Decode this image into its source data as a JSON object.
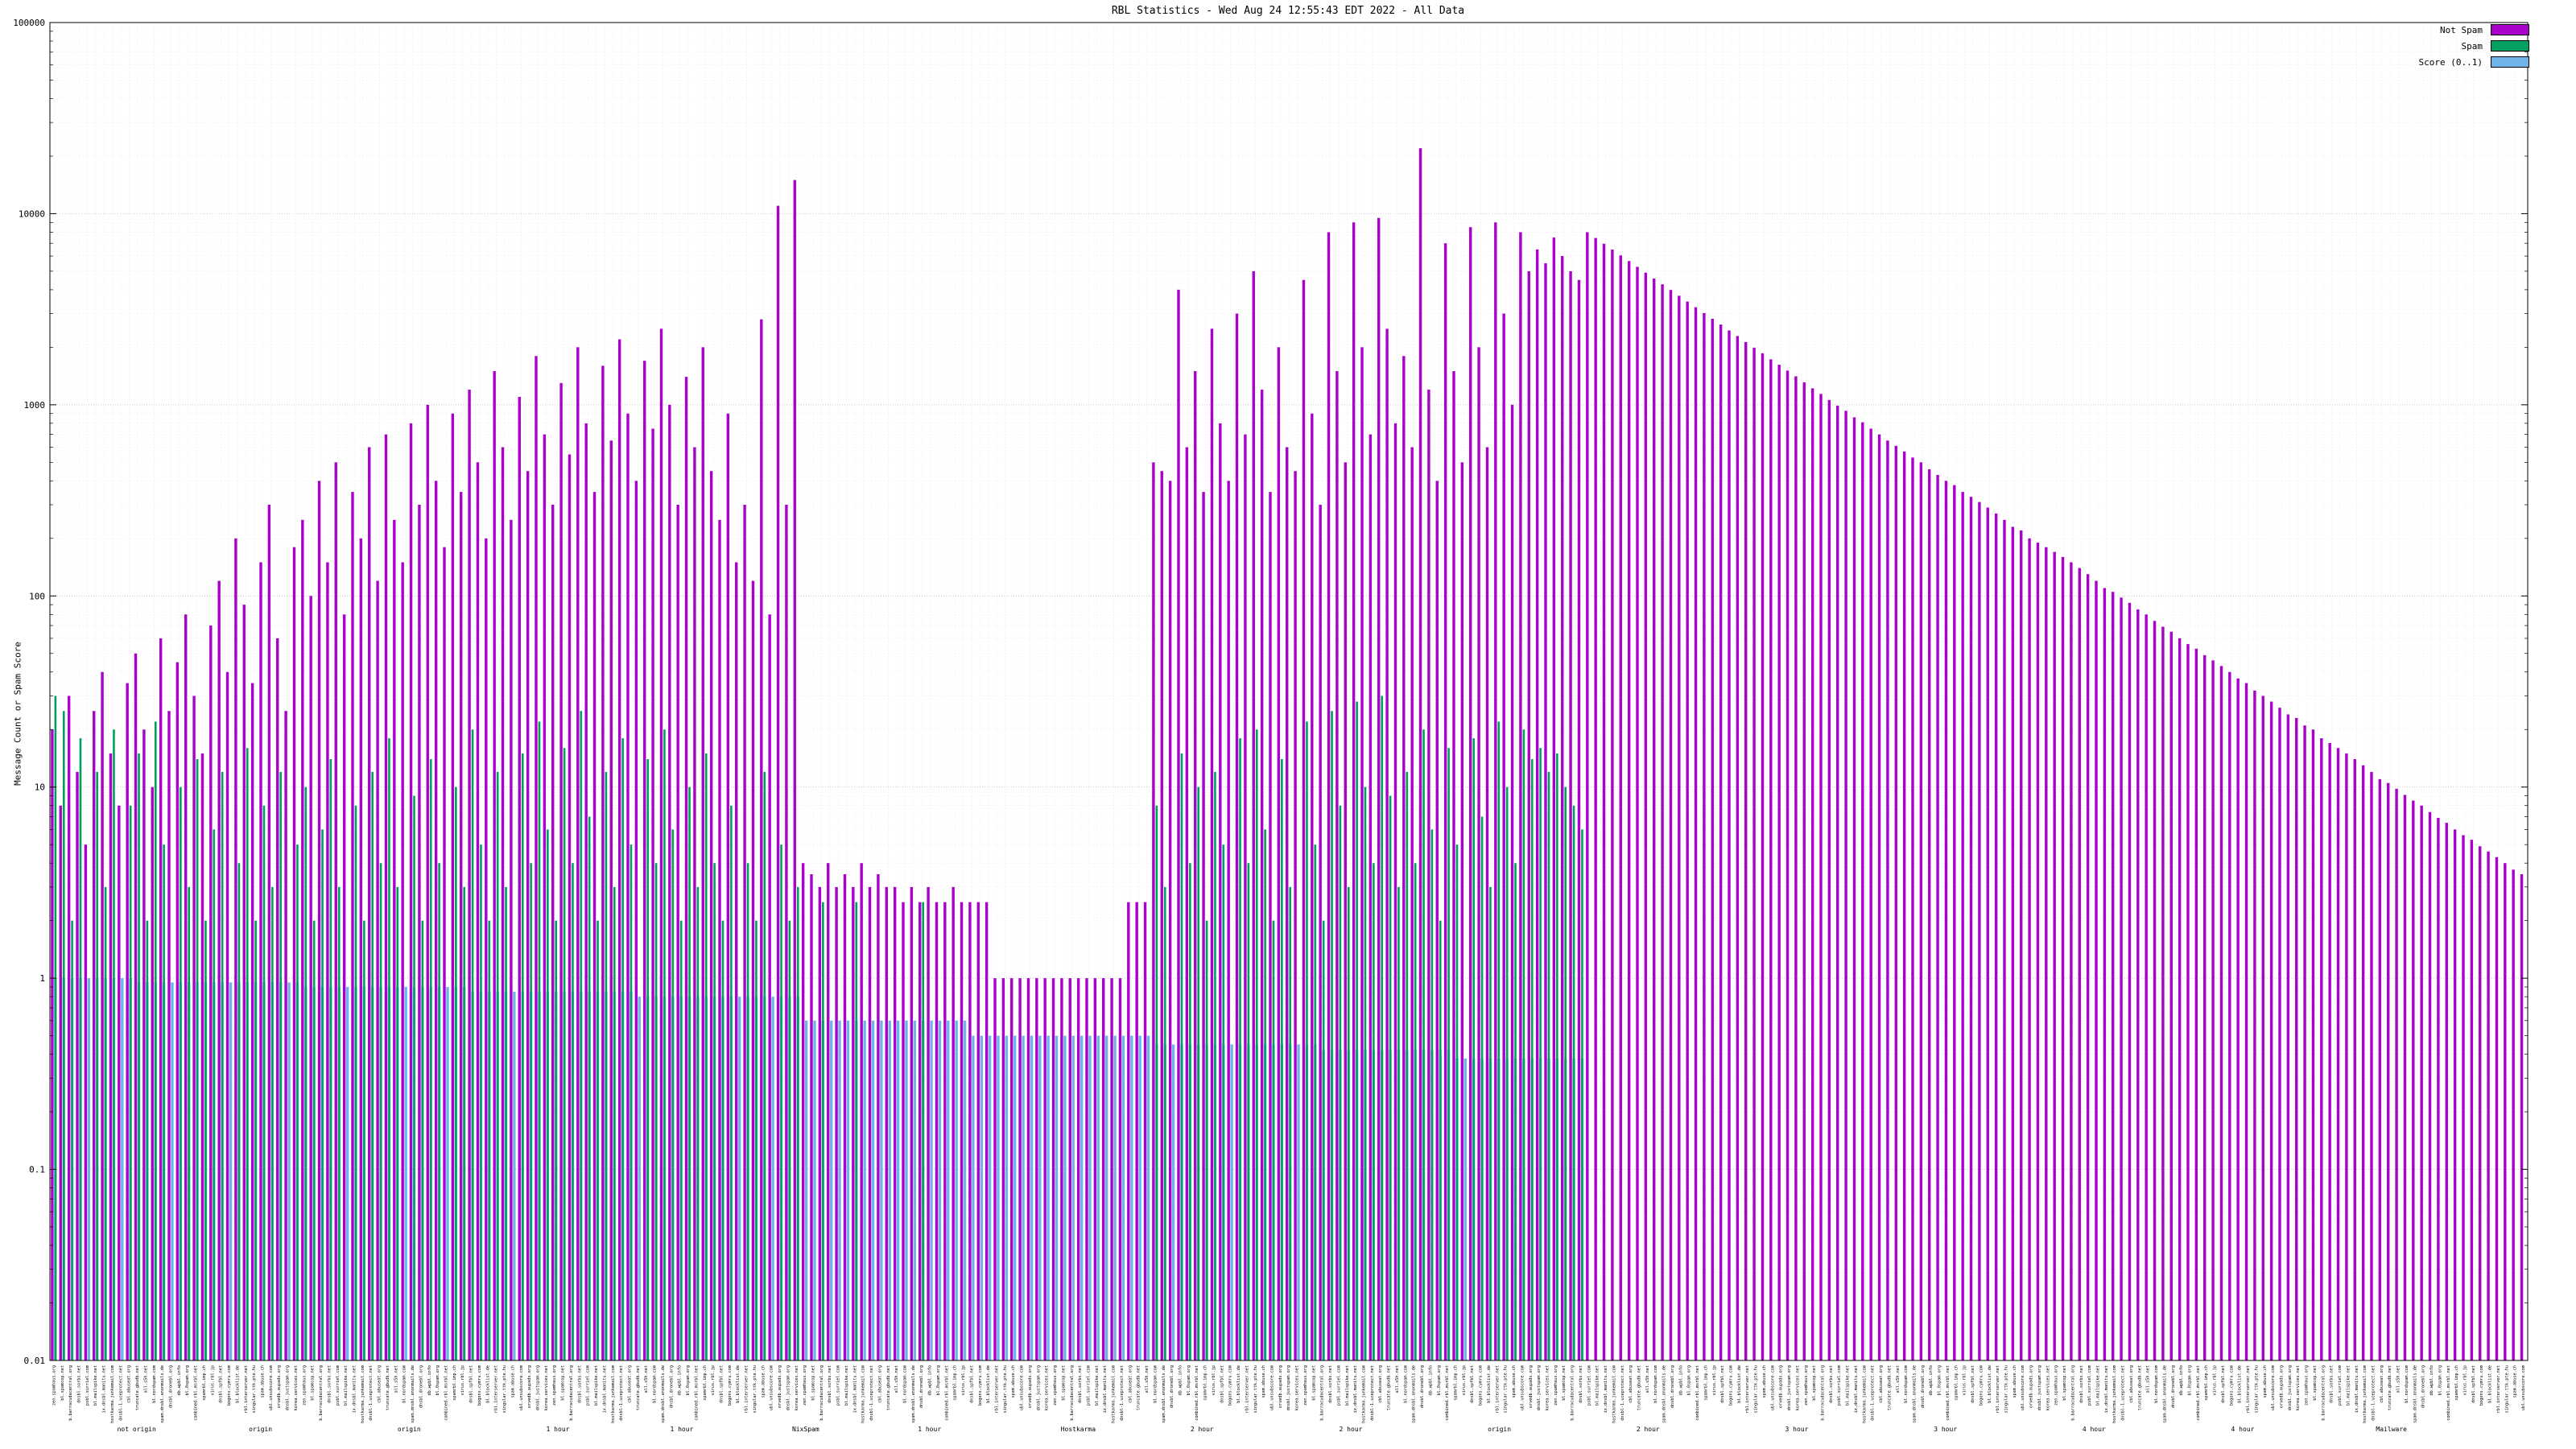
{
  "chart_data": {
    "type": "bar",
    "title": "RBL Statistics - Wed Aug 24 12:55:43 EDT 2022 - All Data",
    "ylabel": "Message Count or Spam Score",
    "xlabel": "",
    "y_scale": "log",
    "ylim": [
      0.01,
      100000
    ],
    "y_ticks": [
      "100000",
      "10000",
      "1000",
      "100",
      "10",
      "1",
      "0.1",
      "0.01"
    ],
    "grid": true,
    "legend_position": "top-right",
    "x_labels_legible": false,
    "x_label_pool": [
      "zen.spamhaus.org",
      "bl.spamcop.net",
      "b.barracudacentral.org",
      "dnsbl.sorbs.net",
      "psbl.surriel.com",
      "bl.mailspike.net",
      "ix.dnsbl.manitu.net",
      "hostkarma.junkemail.com",
      "dnsbl-1.uceprotect.net",
      "cbl.abuseat.org",
      "truncate.gbudb.net",
      "all.s5h.net",
      "bl.nordspam.com",
      "spam.dnsbl.anonmails.de",
      "dnsbl.dronebl.org",
      "db.wpbl.info",
      "bl.0spam.org",
      "combined.rbl.msrbl.net",
      "spamrbl.imp.ch",
      "virus.rbl.jp",
      "dnsbl.spfbl.net",
      "bogons.cymru.com",
      "bl.blocklist.de",
      "rbl.interserver.net",
      "singular.ttk.pte.hu",
      "spam.abuse.ch",
      "ubl.unsubscore.com",
      "orvedb.aupads.org",
      "dnsbl.justspam.org",
      "korea.services.net"
    ],
    "group_labels": [
      {
        "x": 0.035,
        "text": "not origin"
      },
      {
        "x": 0.085,
        "text": "origin"
      },
      {
        "x": 0.145,
        "text": "origin"
      },
      {
        "x": 0.205,
        "text": "1 hour"
      },
      {
        "x": 0.255,
        "text": "1 hour"
      },
      {
        "x": 0.305,
        "text": "NixSpam"
      },
      {
        "x": 0.355,
        "text": "1 hour"
      },
      {
        "x": 0.415,
        "text": "Hostkarma"
      },
      {
        "x": 0.465,
        "text": "2 hour"
      },
      {
        "x": 0.525,
        "text": "2 hour"
      },
      {
        "x": 0.585,
        "text": "origin"
      },
      {
        "x": 0.645,
        "text": "2 hour"
      },
      {
        "x": 0.705,
        "text": "3 hour"
      },
      {
        "x": 0.765,
        "text": "3 hour"
      },
      {
        "x": 0.825,
        "text": "4 hour"
      },
      {
        "x": 0.885,
        "text": "4 hour"
      },
      {
        "x": 0.945,
        "text": "Mailware"
      }
    ],
    "series": [
      {
        "name": "Not Spam",
        "color": "#aa00cc",
        "values": [
          20,
          8,
          30,
          12,
          5,
          25,
          40,
          15,
          8,
          35,
          50,
          20,
          10,
          60,
          25,
          45,
          80,
          30,
          15,
          70,
          120,
          40,
          200,
          90,
          35,
          150,
          300,
          60,
          25,
          180,
          250,
          100,
          400,
          150,
          500,
          80,
          350,
          200,
          600,
          120,
          700,
          250,
          150,
          800,
          300,
          1000,
          400,
          180,
          900,
          350,
          1200,
          500,
          200,
          1500,
          600,
          250,
          1100,
          450,
          1800,
          700,
          300,
          1300,
          550,
          2000,
          800,
          350,
          1600,
          650,
          2200,
          900,
          400,
          1700,
          750,
          2500,
          1000,
          300,
          1400,
          600,
          2000,
          450,
          250,
          900,
          150,
          300,
          120,
          2800,
          80,
          11000,
          300,
          15000,
          4,
          3.5,
          3,
          4,
          3,
          3.5,
          3,
          4,
          3,
          3.5,
          3,
          3,
          2.5,
          3,
          2.5,
          3,
          2.5,
          2.5,
          3,
          2.5,
          2.5,
          2.5,
          2.5,
          1,
          1,
          1,
          1,
          1,
          1,
          1,
          1,
          1,
          1,
          1,
          1,
          1,
          1,
          1,
          1,
          2.5,
          2.5,
          2.5,
          500,
          450,
          400,
          4000,
          600,
          1500,
          350,
          2500,
          800,
          400,
          3000,
          700,
          5000,
          1200,
          350,
          2000,
          600,
          450,
          4500,
          900,
          300,
          8000,
          1500,
          500,
          9000,
          2000,
          700,
          9500,
          2500,
          800,
          1800,
          600,
          22000,
          1200,
          400,
          7000,
          1500,
          500,
          8500,
          2000,
          600,
          9000,
          3000,
          1000,
          8000,
          5000,
          6500,
          5500,
          7500,
          6000,
          5000,
          4500,
          8000,
          7460,
          6960,
          6490,
          6050,
          5650,
          5270,
          4910,
          4580,
          4270,
          3990,
          3720,
          3470,
          3240,
          3020,
          2820,
          2630,
          2450,
          2290,
          2130,
          1990,
          1860,
          1730,
          1620,
          1510,
          1410,
          1310,
          1220,
          1140,
          1060,
          990,
          930,
          860,
          810,
          750,
          700,
          650,
          610,
          570,
          530,
          500,
          460,
          430,
          400,
          380,
          350,
          330,
          310,
          290,
          270,
          250,
          230,
          220,
          200,
          190,
          180,
          170,
          160,
          150,
          140,
          130,
          120,
          110,
          105,
          98,
          92,
          85,
          80,
          74,
          69,
          65,
          60,
          56,
          53,
          49,
          46,
          43,
          40,
          37,
          35,
          32,
          30,
          28,
          26,
          24,
          23,
          21,
          20,
          18,
          17,
          16,
          15,
          14,
          13,
          12,
          11,
          10.5,
          9.8,
          9.1,
          8.5,
          8,
          7.4,
          6.9,
          6.5,
          6,
          5.6,
          5.3,
          4.9,
          4.6,
          4.3,
          4,
          3.7,
          3.5
        ]
      },
      {
        "name": "Spam",
        "color": "#00a060",
        "values": [
          30,
          25,
          2,
          18,
          0,
          12,
          3,
          20,
          0,
          8,
          15,
          2,
          22,
          5,
          0,
          10,
          3,
          14,
          2,
          6,
          12,
          0,
          4,
          16,
          2,
          8,
          3,
          12,
          0,
          5,
          10,
          2,
          6,
          14,
          3,
          0,
          8,
          2,
          12,
          4,
          18,
          3,
          0,
          9,
          2,
          14,
          4,
          0,
          10,
          3,
          20,
          5,
          2,
          12,
          3,
          0,
          15,
          4,
          22,
          6,
          2,
          16,
          4,
          25,
          7,
          2,
          12,
          3,
          18,
          5,
          0,
          14,
          4,
          20,
          6,
          2,
          10,
          3,
          15,
          4,
          2,
          8,
          0,
          4,
          2,
          12,
          0,
          5,
          2,
          3,
          0,
          0,
          2.5,
          0,
          0,
          0,
          2.5,
          0,
          0,
          0,
          0,
          0,
          0,
          0,
          2.5,
          0,
          0,
          0,
          0,
          0,
          0,
          0,
          0,
          0,
          0,
          0,
          0,
          0,
          0,
          0,
          0,
          0,
          0,
          0,
          0,
          0,
          0,
          0,
          0,
          0,
          0,
          0,
          8,
          3,
          0,
          15,
          4,
          10,
          2,
          12,
          5,
          0,
          18,
          4,
          20,
          6,
          2,
          14,
          3,
          0,
          22,
          5,
          2,
          25,
          8,
          3,
          28,
          10,
          4,
          30,
          9,
          3,
          12,
          4,
          20,
          6,
          2,
          16,
          5,
          0,
          18,
          7,
          3,
          22,
          10,
          4,
          20,
          14,
          16,
          12,
          15,
          10,
          8,
          6,
          0,
          0,
          0,
          0,
          0,
          0,
          0,
          0,
          0,
          0,
          0,
          0,
          0,
          0,
          0,
          0,
          0,
          0,
          0,
          0,
          0,
          0,
          0,
          0,
          0,
          0,
          0,
          0,
          0,
          0,
          0,
          0,
          0,
          0,
          0,
          0,
          0,
          0,
          0,
          0,
          0,
          0,
          0,
          0,
          0,
          0,
          0,
          0,
          0,
          0,
          0,
          0,
          0,
          0,
          0,
          0,
          0,
          0,
          0,
          0,
          0,
          0,
          0,
          0,
          0,
          0,
          0,
          0,
          0,
          0,
          0,
          0,
          0,
          0,
          0,
          0,
          0,
          0,
          0,
          0,
          0,
          0,
          0,
          0,
          0,
          0,
          0,
          0,
          0,
          0,
          0,
          0,
          0,
          0,
          0,
          0,
          0,
          0,
          0,
          0,
          0,
          0,
          0,
          0,
          0,
          0,
          0,
          0,
          0,
          0,
          0,
          0,
          0
        ]
      },
      {
        "name": "Score (0..1)",
        "color": "#6fb4e8",
        "values": [
          1,
          1,
          1,
          1,
          1,
          1,
          1,
          1,
          1,
          1,
          0.95,
          0.95,
          0.95,
          0.95,
          0.95,
          0.95,
          0.95,
          0.95,
          0.95,
          0.95,
          0.95,
          0.95,
          0.95,
          0.95,
          0.95,
          0.95,
          0.95,
          0.95,
          0.95,
          0.95,
          0.9,
          0.9,
          0.9,
          0.9,
          0.9,
          0.9,
          0.9,
          0.9,
          0.9,
          0.9,
          0.9,
          0.9,
          0.9,
          0.9,
          0.9,
          0.9,
          0.9,
          0.9,
          0.9,
          0.9,
          0.85,
          0.85,
          0.85,
          0.85,
          0.85,
          0.85,
          0.85,
          0.85,
          0.85,
          0.85,
          0.85,
          0.85,
          0.85,
          0.85,
          0.85,
          0.85,
          0.85,
          0.85,
          0.85,
          0.85,
          0.8,
          0.8,
          0.8,
          0.8,
          0.8,
          0.8,
          0.8,
          0.8,
          0.8,
          0.8,
          0.8,
          0.8,
          0.8,
          0.8,
          0.8,
          0.8,
          0.8,
          0.8,
          0.8,
          0.8,
          0.6,
          0.6,
          0.6,
          0.6,
          0.6,
          0.6,
          0.6,
          0.6,
          0.6,
          0.6,
          0.6,
          0.6,
          0.6,
          0.6,
          0.6,
          0.6,
          0.6,
          0.6,
          0.6,
          0.6,
          0.5,
          0.5,
          0.5,
          0.5,
          0.5,
          0.5,
          0.5,
          0.5,
          0.5,
          0.5,
          0.5,
          0.5,
          0.5,
          0.5,
          0.5,
          0.5,
          0.5,
          0.5,
          0.5,
          0.5,
          0.5,
          0.5,
          0.45,
          0.45,
          0.45,
          0.45,
          0.45,
          0.45,
          0.45,
          0.45,
          0.45,
          0.45,
          0.45,
          0.45,
          0.45,
          0.45,
          0.45,
          0.45,
          0.45,
          0.45,
          0.45,
          0.45,
          0.42,
          0.42,
          0.42,
          0.42,
          0.42,
          0.42,
          0.42,
          0.42,
          0.42,
          0.42,
          0.42,
          0.42,
          0.42,
          0.42,
          0.42,
          0.42,
          0.38,
          0.38,
          0.38,
          0.38,
          0.38,
          0.38,
          0.38,
          0.38,
          0.38,
          0.38,
          0.38,
          0.38,
          0.38,
          0.38,
          0.38,
          0.38,
          0,
          0,
          0,
          0,
          0,
          0,
          0,
          0,
          0,
          0,
          0,
          0,
          0,
          0,
          0,
          0,
          0,
          0,
          0,
          0,
          0,
          0,
          0,
          0,
          0,
          0,
          0,
          0,
          0,
          0,
          0,
          0,
          0,
          0,
          0,
          0,
          0,
          0,
          0,
          0,
          0,
          0,
          0,
          0,
          0,
          0,
          0,
          0,
          0,
          0,
          0,
          0,
          0,
          0,
          0,
          0,
          0,
          0,
          0,
          0,
          0,
          0,
          0,
          0,
          0,
          0,
          0,
          0,
          0,
          0,
          0,
          0,
          0,
          0,
          0,
          0,
          0,
          0,
          0,
          0,
          0,
          0,
          0,
          0,
          0,
          0,
          0,
          0,
          0,
          0,
          0,
          0,
          0,
          0,
          0,
          0,
          0,
          0,
          0,
          0,
          0,
          0,
          0,
          0,
          0,
          0,
          0,
          0,
          0,
          0,
          0,
          0,
          0
        ]
      }
    ]
  }
}
